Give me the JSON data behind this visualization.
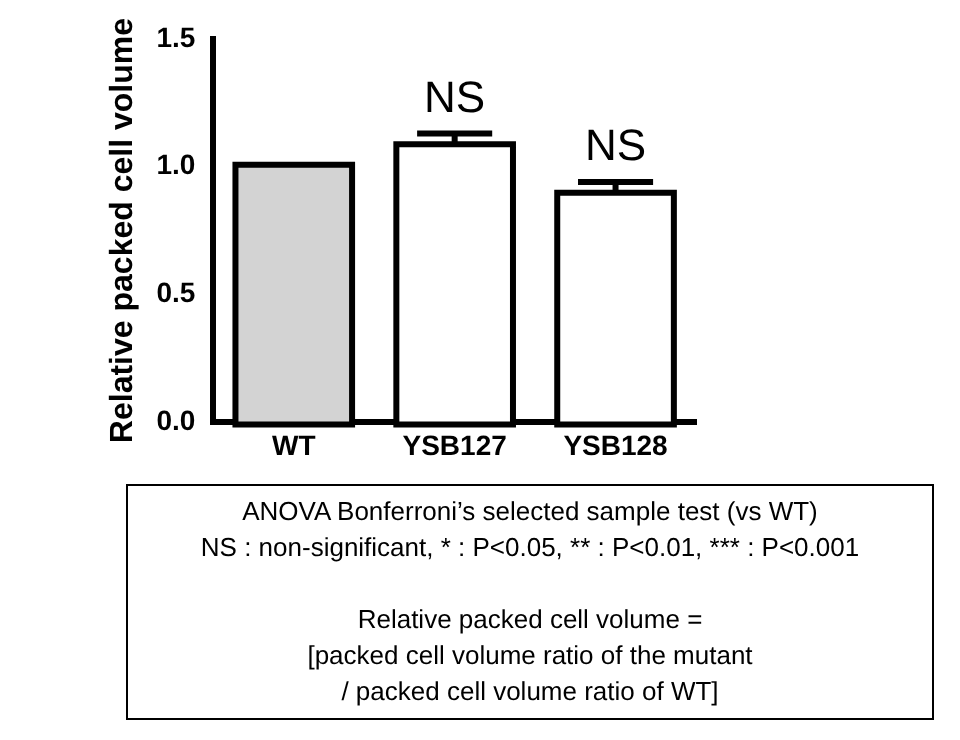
{
  "chart_data": {
    "type": "bar",
    "ylabel": "Relative packed cell volume",
    "categories": [
      "WT",
      "YSB127",
      "YSB128"
    ],
    "values": [
      1.0,
      1.08,
      0.89
    ],
    "errors": [
      null,
      0.05,
      0.05
    ],
    "colors": [
      "#d3d3d3",
      "#ffffff",
      "#ffffff"
    ],
    "ylim": [
      0,
      1.5
    ],
    "yticks": [
      {
        "value": 0,
        "label": "0.0"
      },
      {
        "value": 0.5,
        "label": "0.5"
      },
      {
        "value": 1,
        "label": "1.0"
      },
      {
        "value": 1.5,
        "label": "1.5"
      }
    ],
    "annotations": [
      {
        "text": "NS",
        "x": "YSB127",
        "y": 1.13
      },
      {
        "text": "NS",
        "x": "YSB128",
        "y": 0.94
      },
      "ANOVA Bonferroni’s selected sample test (vs WT)",
      "NS : non-significant, * : P<0.05, ** : P<0.01, *** : P<0.001",
      "Relative packed cell volume =",
      "[packed cell volume ratio of the mutant",
      "/ packed cell volume ratio of WT]"
    ]
  }
}
